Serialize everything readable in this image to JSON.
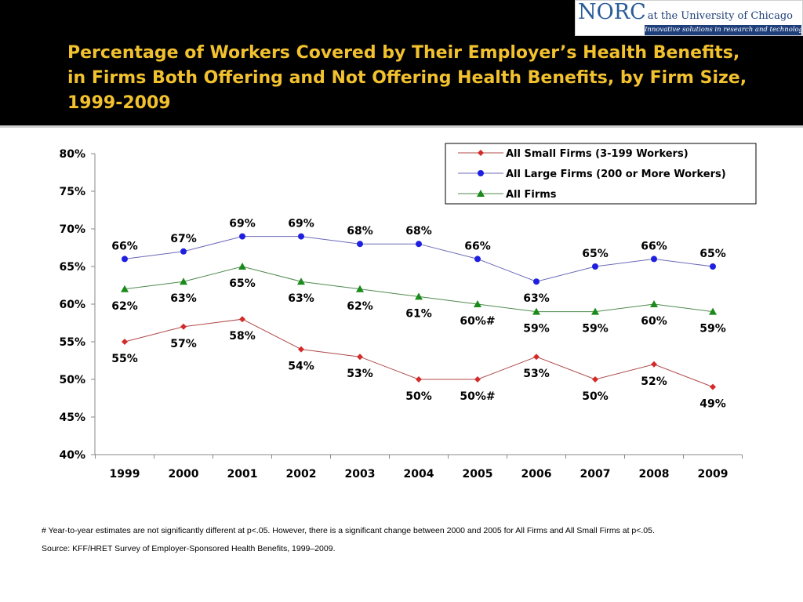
{
  "title": {
    "line1": "Percentage of Workers Covered by Their Employer’s Health Benefits,",
    "line2": "in Firms Both Offering and Not Offering Health Benefits, by Firm Size,",
    "line3": "1999-2009"
  },
  "logo": {
    "name": "NORC",
    "suffix": "at the University of Chicago",
    "tagline": "Innovative solutions in research and technology"
  },
  "colors": {
    "header_bg": "#000000",
    "title": "#f2c12e",
    "small": "#d42a2a",
    "large": "#1f1fe0",
    "all": "#1a8a1a"
  },
  "chart_data": {
    "type": "line",
    "categories": [
      "1999",
      "2000",
      "2001",
      "2002",
      "2003",
      "2004",
      "2005",
      "2006",
      "2007",
      "2008",
      "2009"
    ],
    "ylim": [
      40,
      80
    ],
    "yticks": [
      80,
      75,
      70,
      65,
      60,
      55,
      50,
      45,
      40
    ],
    "ytick_labels": [
      "80%",
      "75%",
      "70%",
      "65%",
      "60%",
      "55%",
      "50%",
      "45%",
      "40%"
    ],
    "legend_position": "top-right",
    "series": [
      {
        "key": "small",
        "name": "All Small Firms (3-199 Workers)",
        "marker": "diamond",
        "values": [
          55,
          57,
          58,
          54,
          53,
          50,
          50,
          53,
          50,
          52,
          49
        ],
        "labels": [
          "55%",
          "57%",
          "58%",
          "54%",
          "53%",
          "50%",
          "50%#",
          "53%",
          "50%",
          "52%",
          "49%"
        ]
      },
      {
        "key": "large",
        "name": "All Large Firms (200 or More Workers)",
        "marker": "circle",
        "values": [
          66,
          67,
          69,
          69,
          68,
          68,
          66,
          63,
          65,
          66,
          65
        ],
        "labels": [
          "66%",
          "67%",
          "69%",
          "69%",
          "68%",
          "68%",
          "66%",
          "63%",
          "65%",
          "66%",
          "65%"
        ]
      },
      {
        "key": "all",
        "name": "All Firms",
        "marker": "triangle",
        "values": [
          62,
          63,
          65,
          63,
          62,
          61,
          60,
          59,
          59,
          60,
          59
        ],
        "labels": [
          "62%",
          "63%",
          "65%",
          "63%",
          "62%",
          "61%",
          "60%#",
          "59%",
          "59%",
          "60%",
          "59%"
        ]
      }
    ]
  },
  "footnote": "# Year-to-year estimates are not significantly different at p<.05.  However, there is a significant change between 2000 and 2005 for All Firms and All Small Firms at p<.05.",
  "source": "Source:  KFF/HRET Survey of Employer-Sponsored Health Benefits, 1999–2009."
}
